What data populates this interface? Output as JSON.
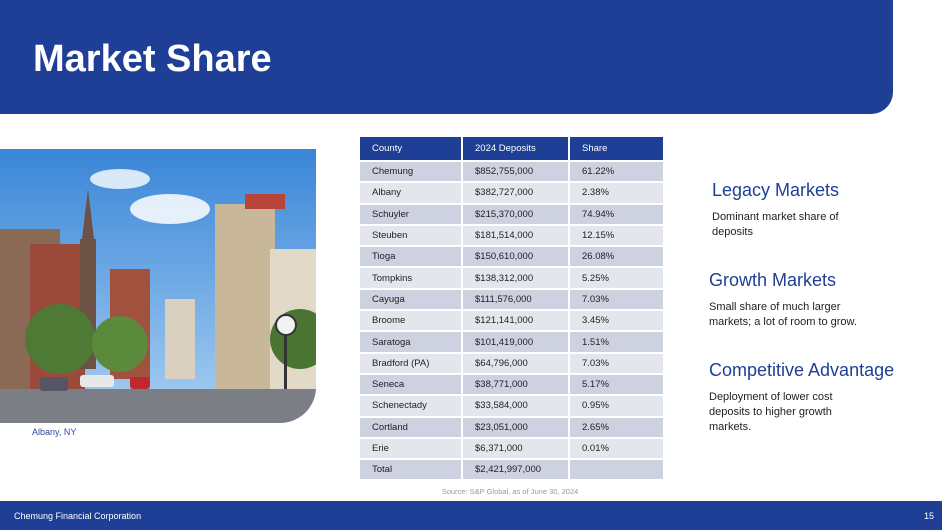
{
  "header": {
    "title": "Market Share"
  },
  "photo": {
    "caption": "Albany, NY"
  },
  "table": {
    "columns": [
      "County",
      "2024 Deposits",
      "Share"
    ],
    "rows": [
      [
        "Chemung",
        "$852,755,000",
        "61.22%"
      ],
      [
        "Albany",
        "$382,727,000",
        "2.38%"
      ],
      [
        "Schuyler",
        "$215,370,000",
        "74.94%"
      ],
      [
        "Steuben",
        "$181,514,000",
        "12.15%"
      ],
      [
        "Tioga",
        "$150,610,000",
        "26.08%"
      ],
      [
        "Tompkins",
        "$138,312,000",
        "5.25%"
      ],
      [
        "Cayuga",
        "$111,576,000",
        "7.03%"
      ],
      [
        "Broome",
        "$121,141,000",
        "3.45%"
      ],
      [
        "Saratoga",
        "$101,419,000",
        "1.51%"
      ],
      [
        "Bradford (PA)",
        "$64,796,000",
        "7.03%"
      ],
      [
        "Seneca",
        "$38,771,000",
        "5.17%"
      ],
      [
        "Schenectady",
        "$33,584,000",
        "0.95%"
      ],
      [
        "Cortland",
        "$23,051,000",
        "2.65%"
      ],
      [
        "Erie",
        "$6,371,000",
        "0.01%"
      ],
      [
        "Total",
        "$2,421,997,000",
        ""
      ]
    ],
    "source": "Source: S&P Global, as of June 30, 2024"
  },
  "sections": [
    {
      "title": "Legacy Markets",
      "body": "Dominant market share of deposits"
    },
    {
      "title": "Growth Markets",
      "body": "Small share of much larger markets; a lot of room to grow."
    },
    {
      "title": "Competitive Advantage",
      "body": "Deployment of lower cost deposits to higher growth markets."
    }
  ],
  "footer": {
    "company": "Chemung Financial Corporation",
    "page": "15"
  }
}
